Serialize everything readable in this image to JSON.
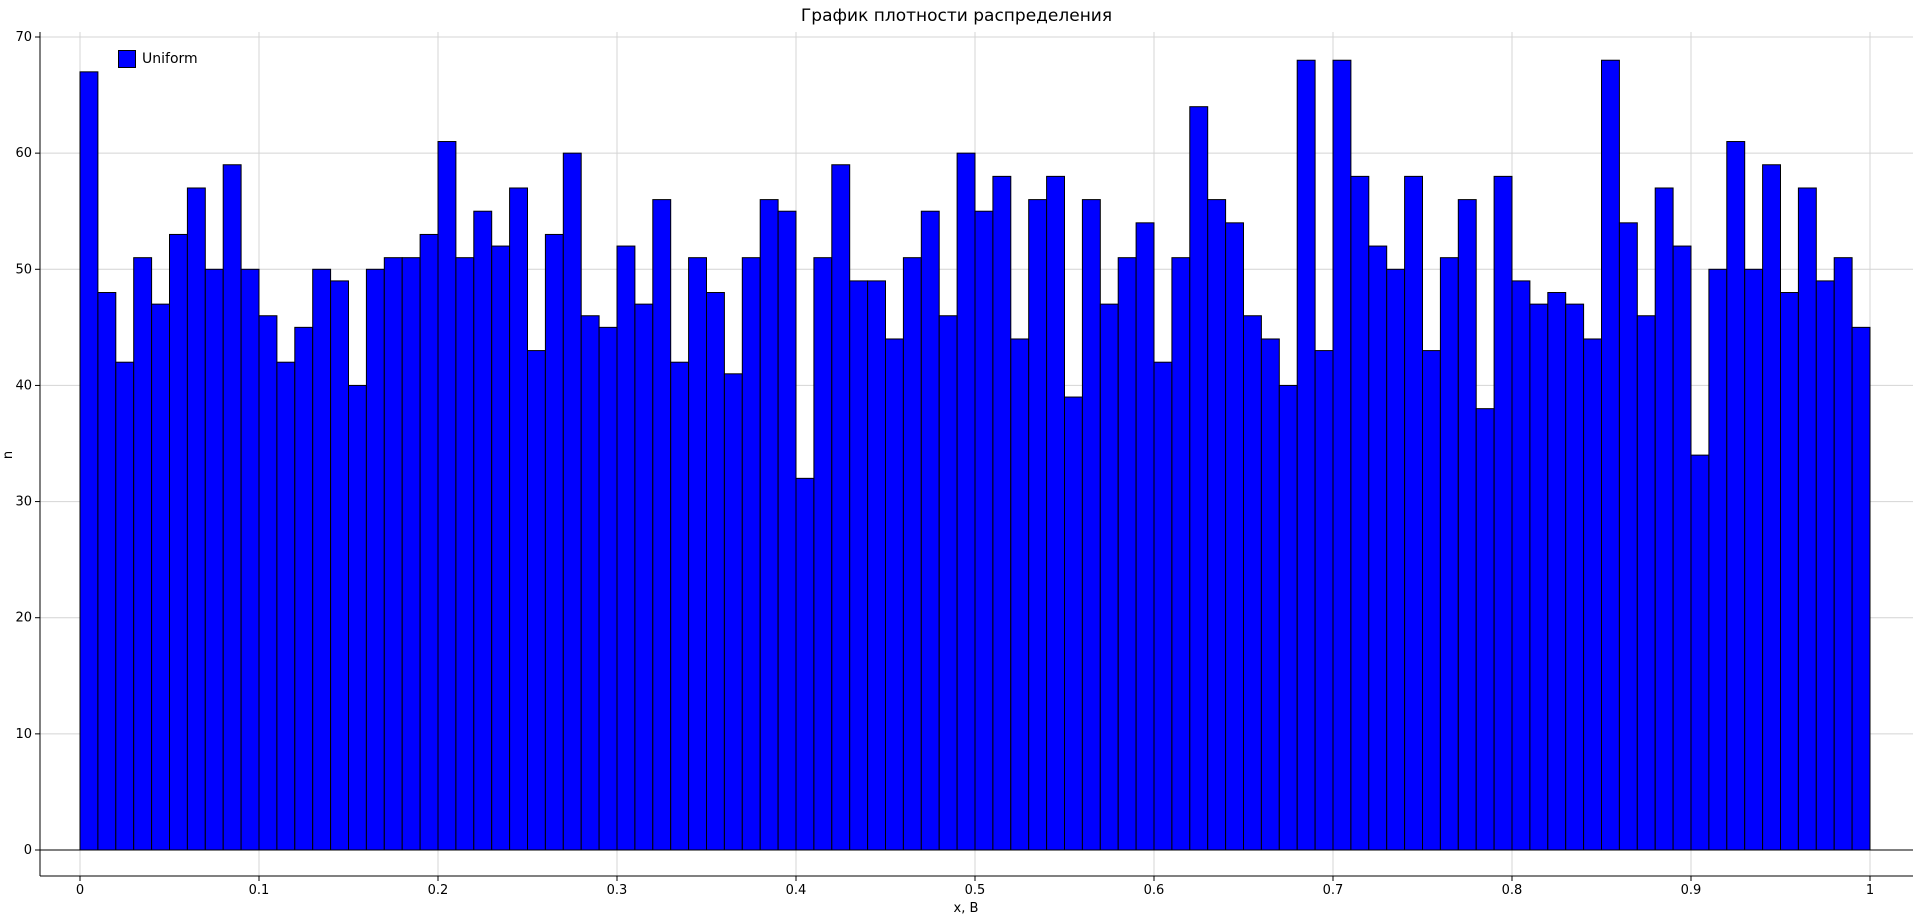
{
  "chart_data": {
    "type": "bar",
    "title": "График плотности распределения",
    "xlabel": "x, В",
    "ylabel": "n",
    "legend": {
      "label": "Uniform",
      "placement": "top-left"
    },
    "xlim": [
      0,
      1
    ],
    "ylim": [
      0,
      70
    ],
    "grid": true,
    "bar_color": "#0000ff",
    "edge_color": "#000000",
    "bin_start": 0,
    "bin_width": 0.01,
    "x_ticks": [
      "0",
      "0.1",
      "0.2",
      "0.3",
      "0.4",
      "0.5",
      "0.6",
      "0.7",
      "0.8",
      "0.9",
      "1"
    ],
    "y_ticks": [
      "0",
      "10",
      "20",
      "30",
      "40",
      "50",
      "60",
      "70"
    ],
    "values": [
      67,
      48,
      42,
      51,
      47,
      53,
      57,
      50,
      59,
      50,
      46,
      42,
      45,
      50,
      49,
      40,
      50,
      51,
      51,
      53,
      61,
      51,
      55,
      52,
      57,
      43,
      53,
      60,
      46,
      45,
      52,
      47,
      56,
      42,
      51,
      48,
      41,
      51,
      56,
      55,
      32,
      51,
      59,
      49,
      49,
      44,
      51,
      55,
      46,
      60,
      55,
      58,
      44,
      56,
      58,
      39,
      56,
      47,
      51,
      54,
      42,
      51,
      64,
      56,
      54,
      46,
      44,
      40,
      68,
      43,
      68,
      58,
      52,
      50,
      58,
      43,
      51,
      56,
      38,
      58,
      49,
      47,
      48,
      47,
      44,
      68,
      54,
      46,
      57,
      52,
      34,
      50,
      61,
      50,
      59,
      48,
      57,
      49,
      51,
      45
    ]
  }
}
